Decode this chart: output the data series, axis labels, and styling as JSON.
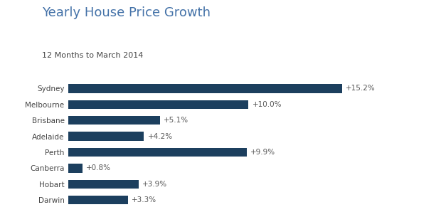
{
  "title": "Yearly House Price Growth",
  "subtitle": "12 Months to March 2014",
  "categories": [
    "Darwin",
    "Hobart",
    "Canberra",
    "Perth",
    "Adelaide",
    "Brisbane",
    "Melbourne",
    "Sydney"
  ],
  "values": [
    3.3,
    3.9,
    0.8,
    9.9,
    4.2,
    5.1,
    10.0,
    15.2
  ],
  "labels": [
    "+3.3%",
    "+3.9%",
    "+0.8%",
    "+9.9%",
    "+4.2%",
    "+5.1%",
    "+10.0%",
    "+15.2%"
  ],
  "bar_color": "#1c3f5e",
  "title_color": "#4472a8",
  "subtitle_color": "#444444",
  "label_color": "#555555",
  "ytick_color": "#444444",
  "background_color": "#ffffff",
  "title_fontsize": 13,
  "subtitle_fontsize": 8,
  "label_fontsize": 7.5,
  "tick_fontsize": 7.5,
  "xlim": [
    0,
    17.5
  ]
}
